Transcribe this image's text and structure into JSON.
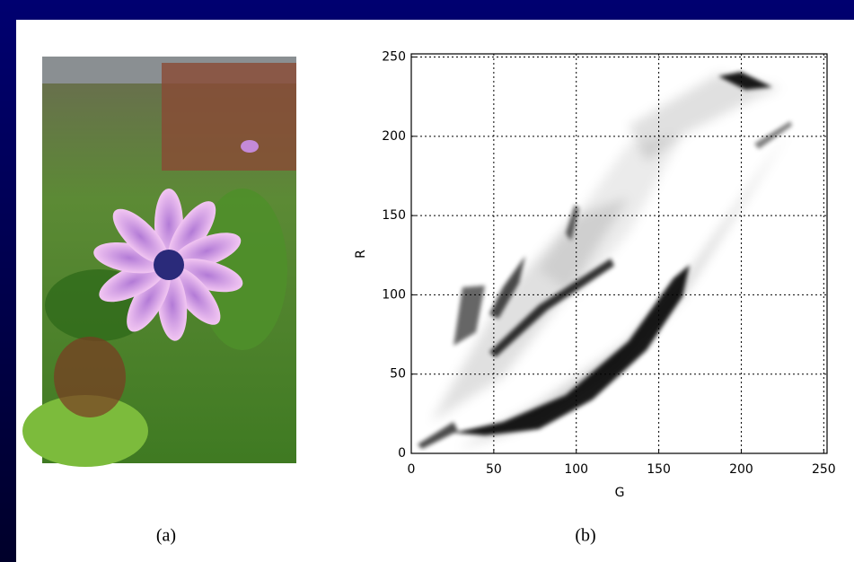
{
  "captions": [
    "(a)",
    "(b)"
  ],
  "chart_data": {
    "type": "density",
    "xlabel": "G",
    "ylabel": "R",
    "xlim": [
      0,
      252
    ],
    "ylim": [
      0,
      252
    ],
    "xticks": [
      0,
      50,
      100,
      150,
      200,
      250
    ],
    "yticks": [
      0,
      50,
      100,
      150,
      200,
      250
    ],
    "grid": true,
    "color": "#000000"
  }
}
